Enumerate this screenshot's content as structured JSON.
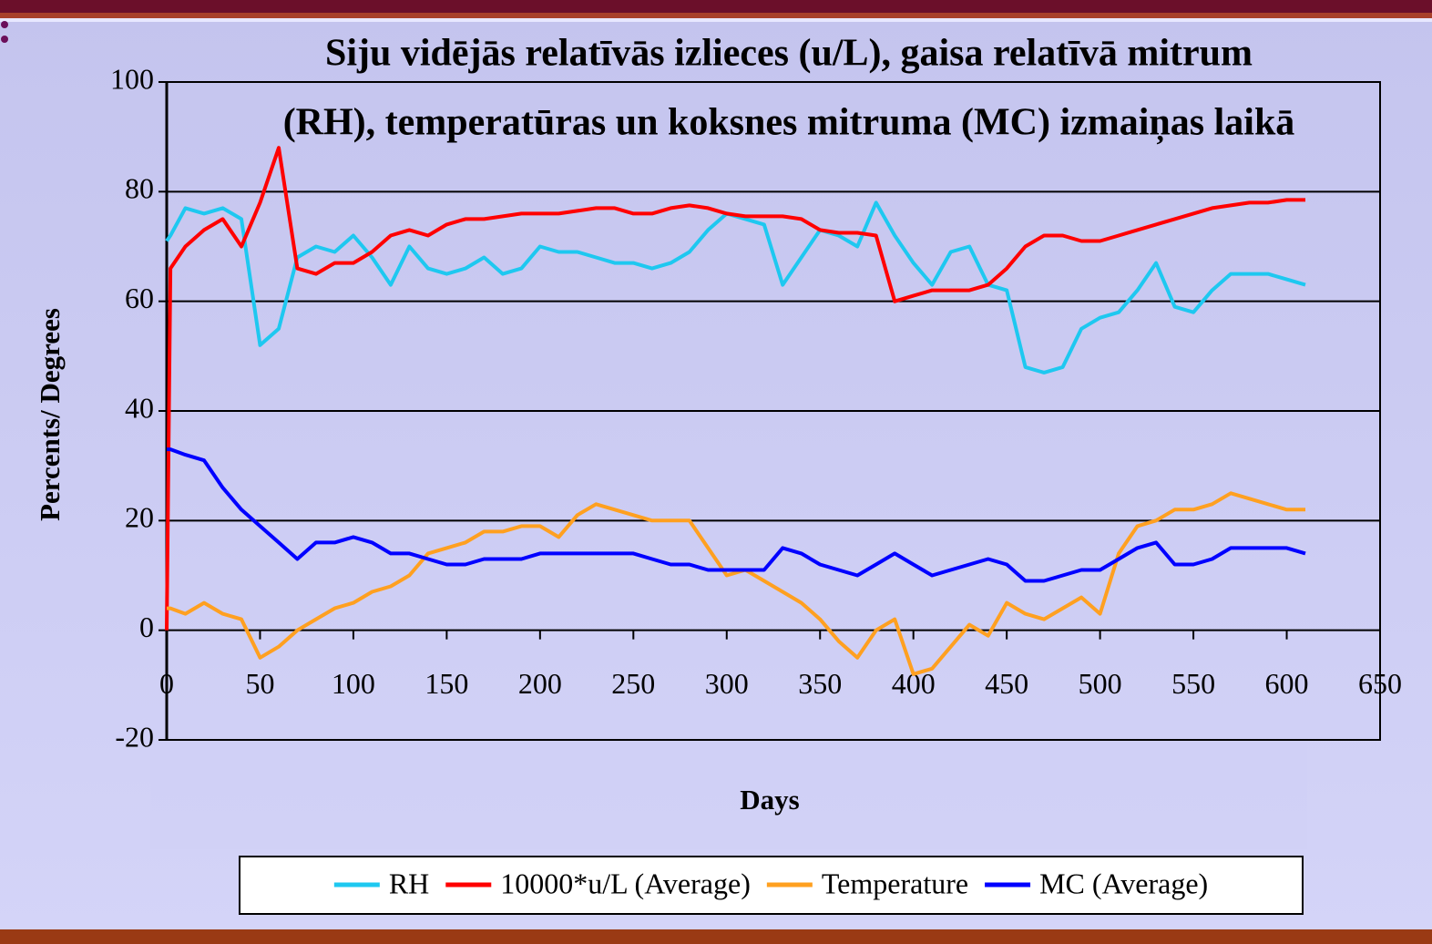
{
  "chart_data": {
    "type": "line",
    "title": [
      "Siju vidējās relatīvās izlieces (u/L), gaisa relatīvā mitrum",
      "(RH), temperatūras un koksnes mitruma (MC) izmaiņas laikā"
    ],
    "x_label": "Days",
    "y_label": "Percents/ Degrees",
    "xlim": [
      0,
      650
    ],
    "xticks": [
      0,
      50,
      100,
      150,
      200,
      250,
      300,
      350,
      400,
      450,
      500,
      550,
      600,
      650
    ],
    "ylim": [
      -20,
      100
    ],
    "yticks": [
      -20,
      0,
      20,
      40,
      60,
      80,
      100
    ],
    "grid": true,
    "legend": "bottom",
    "x": [
      0,
      2,
      10,
      20,
      30,
      40,
      50,
      60,
      70,
      80,
      90,
      100,
      110,
      120,
      130,
      140,
      150,
      160,
      170,
      180,
      190,
      200,
      210,
      220,
      230,
      240,
      250,
      260,
      270,
      280,
      290,
      300,
      310,
      320,
      330,
      340,
      350,
      360,
      370,
      380,
      390,
      400,
      410,
      420,
      430,
      440,
      450,
      460,
      470,
      480,
      490,
      500,
      510,
      520,
      530,
      540,
      550,
      560,
      570,
      580,
      590,
      600,
      610
    ],
    "series": [
      {
        "name": "RH",
        "color": "#1ec8f0",
        "values": [
          71,
          72,
          77,
          76,
          77,
          75,
          52,
          55,
          68,
          70,
          69,
          72,
          68,
          63,
          70,
          66,
          65,
          66,
          68,
          65,
          66,
          70,
          69,
          69,
          68,
          67,
          67,
          66,
          67,
          69,
          73,
          76,
          75,
          74,
          63,
          68,
          73,
          72,
          70,
          78,
          72,
          67,
          63,
          69,
          70,
          63,
          62,
          48,
          47,
          48,
          55,
          57,
          58,
          62,
          67,
          59,
          58,
          62,
          65,
          65,
          65,
          64,
          63
        ]
      },
      {
        "name": "10000*u/L (Average)",
        "color": "#ff0000",
        "values": [
          0,
          66,
          70,
          73,
          75,
          70,
          78,
          88,
          66,
          65,
          67,
          67,
          69,
          72,
          73,
          72,
          74,
          75,
          75,
          75.5,
          76,
          76,
          76,
          76.5,
          77,
          77,
          76,
          76,
          77,
          77.5,
          77,
          76,
          75.5,
          75.5,
          75.5,
          75,
          73,
          72.5,
          72.5,
          72,
          60,
          61,
          62,
          62,
          62,
          63,
          66,
          70,
          72,
          72,
          71,
          71,
          72,
          73,
          74,
          75,
          76,
          77,
          77.5,
          78,
          78,
          78.5,
          78.5
        ]
      },
      {
        "name": "Temperature",
        "color": "#ffa020",
        "values": [
          4,
          4,
          3,
          5,
          3,
          2,
          -5,
          -3,
          0,
          2,
          4,
          5,
          7,
          8,
          10,
          14,
          15,
          16,
          18,
          18,
          19,
          19,
          17,
          21,
          23,
          22,
          21,
          20,
          20,
          20,
          15,
          10,
          11,
          9,
          7,
          5,
          2,
          -2,
          -5,
          0,
          2,
          -8,
          -7,
          -3,
          1,
          -1,
          5,
          3,
          2,
          4,
          6,
          3,
          14,
          19,
          20,
          22,
          22,
          23,
          25,
          24,
          23,
          22,
          22
        ]
      },
      {
        "name": "MC (Average)",
        "color": "#0000ff",
        "values": [
          33,
          33,
          32,
          31,
          26,
          22,
          19,
          16,
          13,
          16,
          16,
          17,
          16,
          14,
          14,
          13,
          12,
          12,
          13,
          13,
          13,
          14,
          14,
          14,
          14,
          14,
          14,
          13,
          12,
          12,
          11,
          11,
          11,
          11,
          15,
          14,
          12,
          11,
          10,
          12,
          14,
          12,
          10,
          11,
          12,
          13,
          12,
          9,
          9,
          10,
          11,
          11,
          13,
          15,
          16,
          12,
          12,
          13,
          15,
          15,
          15,
          15,
          14
        ]
      }
    ]
  }
}
